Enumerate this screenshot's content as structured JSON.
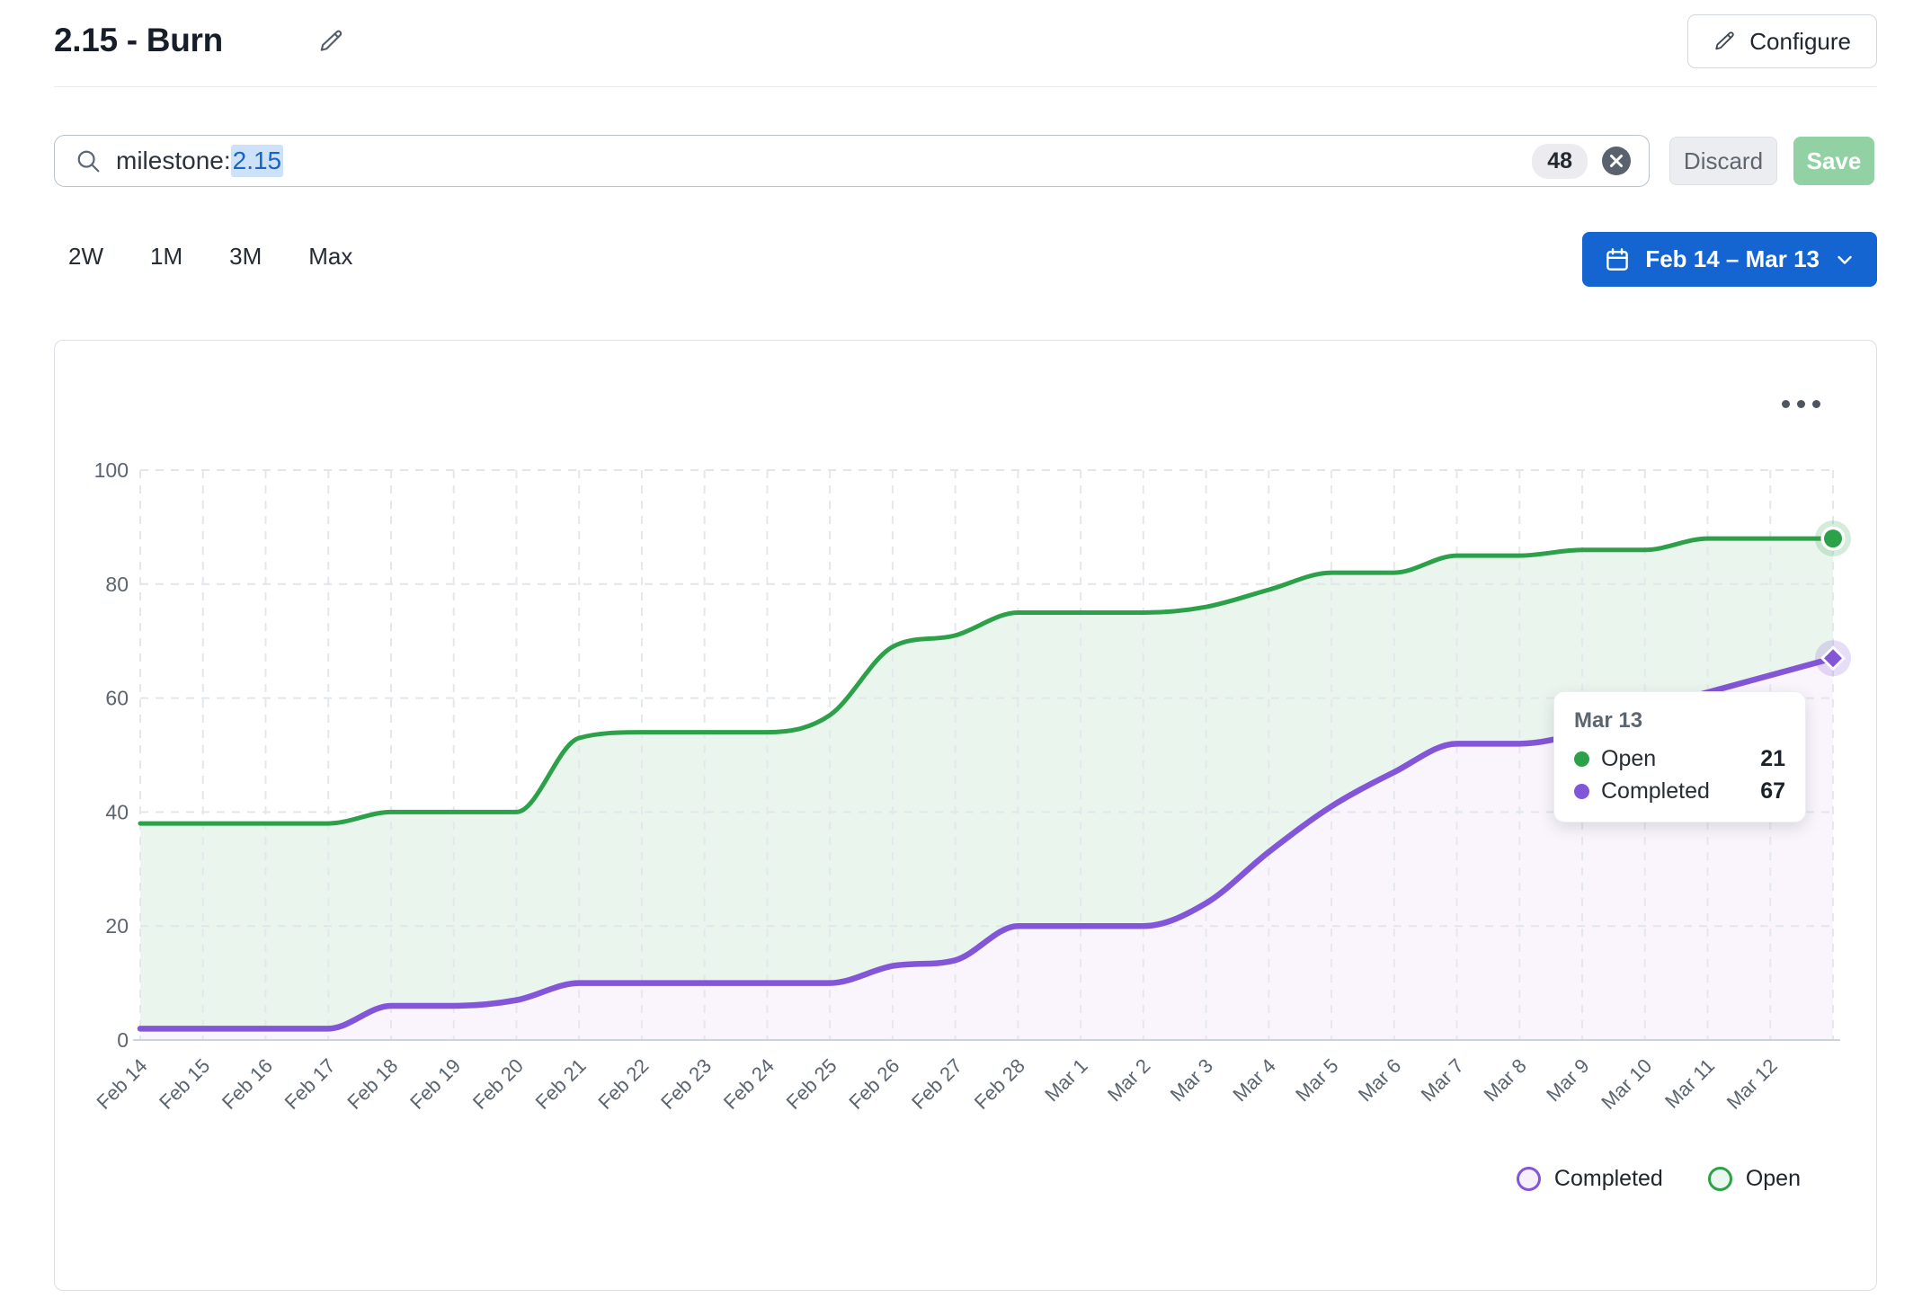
{
  "header": {
    "title": "2.15 - Burn",
    "configure_label": "Configure"
  },
  "filter_bar": {
    "query_prefix": "milestone:",
    "query_value": "2.15",
    "count_badge": "48",
    "discard_label": "Discard",
    "save_label": "Save"
  },
  "range_controls": {
    "presets": [
      "2W",
      "1M",
      "3M",
      "Max"
    ],
    "date_range_label": "Feb 14 – Mar 13"
  },
  "colors": {
    "open": "#2da04a",
    "open_fill": "rgba(45,160,74,0.10)",
    "open_swatch_fill": "#e9f7ee",
    "completed": "#8355d8",
    "completed_fill": "#faf5fc",
    "completed_swatch_fill": "#f6effc",
    "accent_blue": "#1465d2",
    "save_green": "#91d1a4",
    "query_highlight": "#cde1f8",
    "query_text": "#1565c8"
  },
  "tooltip": {
    "title": "Mar 13",
    "rows": [
      {
        "label": "Open",
        "value": "21",
        "color": "#2da04a"
      },
      {
        "label": "Completed",
        "value": "67",
        "color": "#8355d8"
      }
    ]
  },
  "legend": {
    "items": [
      {
        "label": "Completed",
        "color": "#8355d8",
        "fill": "#f6effc"
      },
      {
        "label": "Open",
        "color": "#2da04a",
        "fill": "#e9f7ee"
      }
    ]
  },
  "chart_data": {
    "type": "area",
    "stacked": true,
    "smooth": true,
    "x": [
      "Feb 14",
      "Feb 15",
      "Feb 16",
      "Feb 17",
      "Feb 18",
      "Feb 19",
      "Feb 20",
      "Feb 21",
      "Feb 22",
      "Feb 23",
      "Feb 24",
      "Feb 25",
      "Feb 26",
      "Feb 27",
      "Feb 28",
      "Mar 1",
      "Mar 2",
      "Mar 3",
      "Mar 4",
      "Mar 5",
      "Mar 6",
      "Mar 7",
      "Mar 8",
      "Mar 9",
      "Mar 10",
      "Mar 11",
      "Mar 12",
      "Mar 13"
    ],
    "x_axis_last_label_hidden": true,
    "series": [
      {
        "name": "Completed",
        "color": "#8355d8",
        "area_fill": "#faf5fc",
        "values": [
          2,
          2,
          2,
          2,
          6,
          6,
          7,
          10,
          10,
          10,
          10,
          10,
          13,
          14,
          20,
          20,
          20,
          24,
          33,
          41,
          47,
          52,
          52,
          54,
          58,
          61,
          64,
          67
        ]
      },
      {
        "name": "Open",
        "color": "#2da04a",
        "area_fill": "rgba(45,160,74,0.10)",
        "values": [
          36,
          36,
          36,
          36,
          34,
          34,
          33,
          43,
          44,
          44,
          44,
          47,
          56,
          57,
          55,
          55,
          55,
          52,
          46,
          41,
          35,
          33,
          33,
          32,
          28,
          27,
          24,
          21
        ]
      }
    ],
    "stacked_totals": [
      38,
      38,
      38,
      38,
      40,
      40,
      40,
      53,
      54,
      54,
      54,
      57,
      69,
      71,
      75,
      75,
      75,
      76,
      79,
      82,
      82,
      85,
      85,
      86,
      86,
      88,
      88,
      88
    ],
    "ylim": [
      0,
      100
    ],
    "yticks": [
      0,
      20,
      40,
      60,
      80,
      100
    ],
    "grid": "dashed",
    "legend_position": "bottom-right",
    "end_markers": {
      "open": "circle",
      "completed": "diamond"
    }
  }
}
